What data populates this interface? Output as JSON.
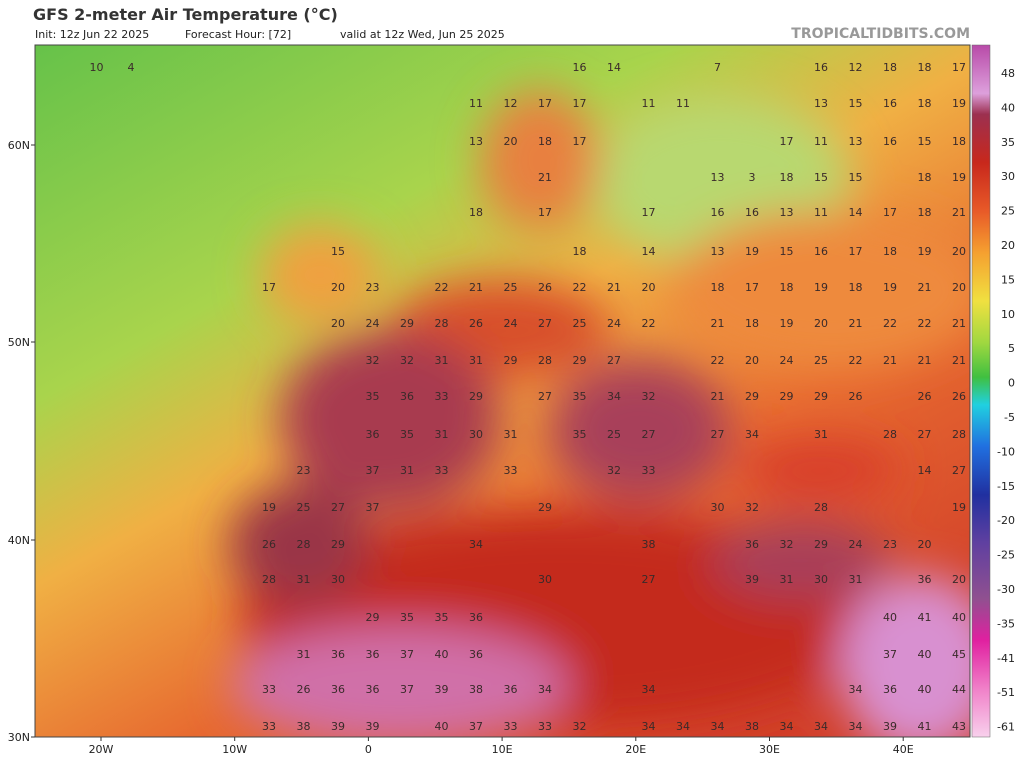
{
  "header": {
    "title": "GFS 2-meter Air Temperature (°C)",
    "init": "Init: 12z Jun 22 2025",
    "forecast_hour": "Forecast Hour: [72]",
    "valid": "valid at 12z Wed, Jun 25 2025",
    "watermark": "TROPICALTIDBITS.COM"
  },
  "axes": {
    "lat_labels": [
      "60N",
      "50N",
      "40N",
      "30N"
    ],
    "lon_labels": [
      "20W",
      "10W",
      "0",
      "10E",
      "20E",
      "30E",
      "40E"
    ]
  },
  "colorbar": {
    "labels": [
      48,
      40,
      35,
      30,
      25,
      20,
      15,
      10,
      5,
      0,
      -5,
      -10,
      -15,
      -20,
      -25,
      -30,
      -35,
      -41,
      -51,
      -61
    ]
  },
  "map": {
    "rows": [
      [
        null,
        10,
        4,
        null,
        null,
        null,
        null,
        null,
        null,
        null,
        null,
        null,
        null,
        null,
        null,
        16,
        14,
        null,
        null,
        7,
        null,
        null,
        16,
        12,
        18,
        18,
        17
      ],
      [
        null,
        null,
        null,
        null,
        null,
        null,
        null,
        null,
        null,
        null,
        null,
        null,
        11,
        12,
        17,
        17,
        null,
        11,
        11,
        null,
        null,
        null,
        13,
        15,
        16,
        18,
        19
      ],
      [
        null,
        null,
        null,
        null,
        null,
        null,
        null,
        null,
        null,
        null,
        null,
        null,
        13,
        20,
        18,
        17,
        null,
        null,
        null,
        null,
        null,
        17,
        11,
        13,
        16,
        15,
        18
      ],
      [
        null,
        null,
        null,
        null,
        null,
        null,
        null,
        null,
        null,
        null,
        null,
        null,
        null,
        null,
        21,
        null,
        null,
        null,
        null,
        13,
        3,
        18,
        15,
        15,
        null,
        18,
        19
      ],
      [
        null,
        null,
        null,
        null,
        null,
        null,
        null,
        null,
        null,
        null,
        null,
        null,
        18,
        null,
        17,
        null,
        null,
        17,
        null,
        16,
        16,
        13,
        11,
        14,
        17,
        18,
        21
      ],
      [
        null,
        null,
        null,
        null,
        null,
        null,
        null,
        null,
        15,
        null,
        null,
        null,
        null,
        null,
        null,
        18,
        null,
        14,
        null,
        13,
        19,
        15,
        16,
        17,
        18,
        19,
        20
      ],
      [
        null,
        null,
        null,
        null,
        null,
        null,
        17,
        null,
        20,
        23,
        null,
        22,
        21,
        25,
        26,
        22,
        21,
        20,
        null,
        18,
        17,
        18,
        19,
        18,
        19,
        21,
        20
      ],
      [
        null,
        null,
        null,
        null,
        null,
        null,
        null,
        null,
        20,
        24,
        29,
        28,
        26,
        24,
        27,
        25,
        24,
        22,
        null,
        21,
        18,
        19,
        20,
        21,
        22,
        22,
        21
      ],
      [
        null,
        null,
        null,
        null,
        null,
        null,
        null,
        null,
        null,
        32,
        32,
        31,
        31,
        29,
        28,
        29,
        27,
        null,
        null,
        22,
        20,
        24,
        25,
        22,
        21,
        21,
        21
      ],
      [
        null,
        null,
        null,
        null,
        null,
        null,
        null,
        null,
        null,
        35,
        36,
        33,
        29,
        null,
        27,
        35,
        34,
        32,
        null,
        21,
        29,
        29,
        29,
        26,
        null,
        26,
        26
      ],
      [
        null,
        null,
        null,
        null,
        null,
        null,
        null,
        null,
        null,
        36,
        35,
        31,
        30,
        31,
        null,
        35,
        25,
        27,
        null,
        27,
        34,
        null,
        31,
        null,
        28,
        27,
        28
      ],
      [
        null,
        null,
        null,
        null,
        null,
        null,
        null,
        23,
        null,
        37,
        31,
        33,
        null,
        33,
        null,
        null,
        32,
        33,
        null,
        null,
        null,
        null,
        null,
        null,
        null,
        14,
        27
      ],
      [
        null,
        null,
        null,
        null,
        null,
        null,
        19,
        25,
        27,
        37,
        null,
        null,
        null,
        null,
        29,
        null,
        null,
        null,
        null,
        30,
        32,
        null,
        28,
        null,
        null,
        null,
        19
      ],
      [
        null,
        null,
        null,
        null,
        null,
        null,
        26,
        28,
        29,
        null,
        null,
        null,
        34,
        null,
        null,
        null,
        null,
        38,
        null,
        null,
        36,
        32,
        29,
        24,
        23,
        20,
        null
      ],
      [
        null,
        null,
        null,
        null,
        null,
        null,
        28,
        31,
        30,
        null,
        null,
        null,
        null,
        null,
        30,
        null,
        null,
        27,
        null,
        null,
        39,
        31,
        30,
        31,
        null,
        36,
        20
      ],
      [
        null,
        null,
        null,
        null,
        null,
        null,
        null,
        null,
        null,
        29,
        35,
        35,
        36,
        null,
        null,
        null,
        null,
        null,
        null,
        null,
        null,
        null,
        null,
        null,
        40,
        41,
        40
      ],
      [
        null,
        null,
        null,
        null,
        null,
        null,
        null,
        31,
        36,
        36,
        37,
        40,
        36,
        null,
        null,
        null,
        null,
        null,
        null,
        null,
        null,
        null,
        null,
        null,
        37,
        40,
        45
      ],
      [
        null,
        null,
        null,
        null,
        null,
        null,
        33,
        26,
        36,
        36,
        37,
        39,
        38,
        36,
        34,
        null,
        null,
        34,
        null,
        null,
        null,
        null,
        null,
        34,
        36,
        40,
        44
      ],
      [
        null,
        null,
        null,
        null,
        null,
        null,
        33,
        38,
        39,
        39,
        null,
        40,
        37,
        33,
        33,
        32,
        null,
        34,
        34,
        34,
        38,
        34,
        34,
        34,
        39,
        41,
        43
      ]
    ]
  }
}
